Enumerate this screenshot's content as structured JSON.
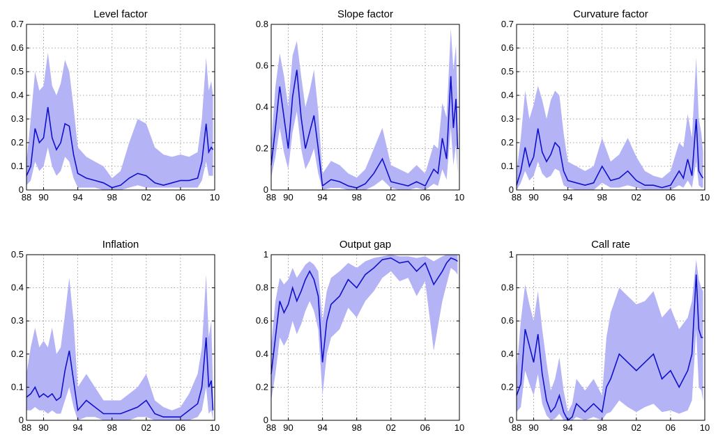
{
  "colors": {
    "band": "#b3b3f5",
    "line": "#1010cc",
    "grid": "#888888",
    "axis": "#000000"
  },
  "chart_data": [
    {
      "type": "area",
      "title": "Level factor",
      "x_ticks": [
        "88",
        "90",
        "94",
        "98",
        "02",
        "06",
        "10"
      ],
      "x_tick_values": [
        1988,
        1990,
        1994,
        1998,
        2002,
        2006,
        2010
      ],
      "xlim": [
        1988,
        2010
      ],
      "ylim": [
        0,
        0.7
      ],
      "y_ticks": [
        "0",
        "0.1",
        "0.2",
        "0.3",
        "0.4",
        "0.5",
        "0.6",
        "0.7"
      ],
      "y_tick_values": [
        0,
        0.1,
        0.2,
        0.3,
        0.4,
        0.5,
        0.6,
        0.7
      ],
      "grid": true,
      "x": [
        1988,
        1988.5,
        1989,
        1989.5,
        1990,
        1990.5,
        1991,
        1991.5,
        1992,
        1992.5,
        1993,
        1993.5,
        1994,
        1995,
        1996,
        1997,
        1998,
        1999,
        2000,
        2001,
        2002,
        2003,
        2004,
        2005,
        2006,
        2007,
        2008,
        2008.5,
        2009,
        2009.3,
        2009.6,
        2009.8
      ],
      "median": [
        0.06,
        0.1,
        0.26,
        0.2,
        0.22,
        0.35,
        0.22,
        0.17,
        0.2,
        0.28,
        0.27,
        0.15,
        0.07,
        0.05,
        0.04,
        0.03,
        0.01,
        0.02,
        0.05,
        0.07,
        0.06,
        0.03,
        0.02,
        0.03,
        0.04,
        0.04,
        0.05,
        0.12,
        0.28,
        0.16,
        0.18,
        0.17
      ],
      "lower": [
        0.02,
        0.04,
        0.12,
        0.08,
        0.1,
        0.18,
        0.1,
        0.06,
        0.08,
        0.14,
        0.12,
        0.05,
        0.01,
        0.01,
        0.01,
        0.0,
        0.0,
        0.0,
        0.01,
        0.02,
        0.01,
        0.01,
        0.01,
        0.01,
        0.01,
        0.01,
        0.01,
        0.04,
        0.12,
        0.06,
        0.06,
        0.06
      ],
      "upper": [
        0.12,
        0.3,
        0.5,
        0.42,
        0.44,
        0.58,
        0.44,
        0.4,
        0.45,
        0.55,
        0.5,
        0.35,
        0.18,
        0.14,
        0.12,
        0.1,
        0.05,
        0.08,
        0.2,
        0.3,
        0.28,
        0.18,
        0.15,
        0.14,
        0.15,
        0.14,
        0.16,
        0.3,
        0.56,
        0.42,
        0.46,
        0.4
      ]
    },
    {
      "type": "area",
      "title": "Slope factor",
      "x_ticks": [
        "88",
        "90",
        "94",
        "98",
        "02",
        "06",
        "10"
      ],
      "x_tick_values": [
        1988,
        1990,
        1994,
        1998,
        2002,
        2006,
        2010
      ],
      "xlim": [
        1988,
        2010
      ],
      "ylim": [
        0,
        0.8
      ],
      "y_ticks": [
        "0",
        "0.2",
        "0.4",
        "0.6",
        "0.8"
      ],
      "y_tick_values": [
        0,
        0.2,
        0.4,
        0.6,
        0.8
      ],
      "grid": true,
      "x": [
        1988,
        1988.5,
        1989,
        1989.5,
        1990,
        1990.5,
        1991,
        1991.5,
        1992,
        1992.5,
        1993,
        1993.5,
        1994,
        1995,
        1996,
        1997,
        1998,
        1999,
        2000,
        2001,
        2002,
        2003,
        2004,
        2005,
        2006,
        2007,
        2007.5,
        2008,
        2008.5,
        2009,
        2009.3,
        2009.6,
        2009.8
      ],
      "median": [
        0.12,
        0.3,
        0.5,
        0.35,
        0.2,
        0.45,
        0.58,
        0.35,
        0.2,
        0.28,
        0.36,
        0.2,
        0.02,
        0.05,
        0.04,
        0.02,
        0.01,
        0.03,
        0.08,
        0.15,
        0.04,
        0.03,
        0.02,
        0.04,
        0.02,
        0.1,
        0.08,
        0.25,
        0.15,
        0.55,
        0.3,
        0.44,
        0.2
      ],
      "lower": [
        0.06,
        0.16,
        0.3,
        0.18,
        0.1,
        0.28,
        0.38,
        0.2,
        0.1,
        0.14,
        0.2,
        0.08,
        0.0,
        0.01,
        0.01,
        0.0,
        0.0,
        0.0,
        0.02,
        0.05,
        0.01,
        0.0,
        0.0,
        0.01,
        0.0,
        0.03,
        0.02,
        0.1,
        0.05,
        0.3,
        0.12,
        0.22,
        0.08
      ],
      "upper": [
        0.22,
        0.5,
        0.66,
        0.55,
        0.4,
        0.65,
        0.72,
        0.55,
        0.4,
        0.48,
        0.58,
        0.38,
        0.08,
        0.14,
        0.12,
        0.08,
        0.06,
        0.1,
        0.2,
        0.3,
        0.12,
        0.1,
        0.08,
        0.12,
        0.08,
        0.22,
        0.2,
        0.42,
        0.35,
        0.78,
        0.58,
        0.7,
        0.4
      ]
    },
    {
      "type": "area",
      "title": "Curvature factor",
      "x_ticks": [
        "88",
        "90",
        "94",
        "98",
        "02",
        "06",
        "10"
      ],
      "x_tick_values": [
        1988,
        1990,
        1994,
        1998,
        2002,
        2006,
        2010
      ],
      "xlim": [
        1988,
        2010
      ],
      "ylim": [
        0,
        0.7
      ],
      "y_ticks": [
        "0",
        "0.1",
        "0.2",
        "0.3",
        "0.4",
        "0.5",
        "0.6",
        "0.7"
      ],
      "y_tick_values": [
        0,
        0.1,
        0.2,
        0.3,
        0.4,
        0.5,
        0.6,
        0.7
      ],
      "grid": true,
      "x": [
        1988,
        1988.5,
        1989,
        1989.5,
        1990,
        1990.5,
        1991,
        1991.5,
        1992,
        1992.5,
        1993,
        1993.5,
        1994,
        1995,
        1996,
        1997,
        1998,
        1999,
        2000,
        2001,
        2002,
        2003,
        2004,
        2005,
        2006,
        2007,
        2007.5,
        2008,
        2008.5,
        2009,
        2009.3,
        2009.6,
        2009.8
      ],
      "median": [
        0.02,
        0.08,
        0.18,
        0.1,
        0.14,
        0.26,
        0.16,
        0.12,
        0.15,
        0.2,
        0.18,
        0.08,
        0.04,
        0.03,
        0.02,
        0.03,
        0.1,
        0.04,
        0.05,
        0.08,
        0.04,
        0.02,
        0.02,
        0.01,
        0.02,
        0.08,
        0.05,
        0.13,
        0.06,
        0.3,
        0.08,
        0.06,
        0.05
      ],
      "lower": [
        0.0,
        0.03,
        0.08,
        0.04,
        0.06,
        0.12,
        0.07,
        0.05,
        0.06,
        0.09,
        0.08,
        0.02,
        0.01,
        0.0,
        0.0,
        0.0,
        0.03,
        0.01,
        0.01,
        0.02,
        0.01,
        0.0,
        0.0,
        0.0,
        0.0,
        0.02,
        0.01,
        0.04,
        0.01,
        0.12,
        0.02,
        0.01,
        0.01
      ],
      "upper": [
        0.08,
        0.22,
        0.42,
        0.3,
        0.36,
        0.44,
        0.38,
        0.3,
        0.38,
        0.42,
        0.4,
        0.24,
        0.12,
        0.1,
        0.08,
        0.1,
        0.22,
        0.12,
        0.15,
        0.22,
        0.14,
        0.08,
        0.06,
        0.05,
        0.08,
        0.2,
        0.18,
        0.32,
        0.22,
        0.56,
        0.3,
        0.24,
        0.16
      ]
    },
    {
      "type": "area",
      "title": "Inflation",
      "x_ticks": [
        "88",
        "90",
        "94",
        "98",
        "02",
        "06",
        "10"
      ],
      "x_tick_values": [
        1988,
        1990,
        1994,
        1998,
        2002,
        2006,
        2010
      ],
      "xlim": [
        1988,
        2010
      ],
      "ylim": [
        0,
        0.5
      ],
      "y_ticks": [
        "0",
        "0.1",
        "0.2",
        "0.3",
        "0.4",
        "0.5"
      ],
      "y_tick_values": [
        0,
        0.1,
        0.2,
        0.3,
        0.4,
        0.5
      ],
      "grid": true,
      "x": [
        1988,
        1988.5,
        1989,
        1989.5,
        1990,
        1990.5,
        1991,
        1991.5,
        1992,
        1992.5,
        1993,
        1993.5,
        1994,
        1995,
        1996,
        1997,
        1998,
        1999,
        2000,
        2001,
        2002,
        2003,
        2004,
        2005,
        2006,
        2007,
        2008,
        2008.5,
        2009,
        2009.3,
        2009.6,
        2009.8
      ],
      "median": [
        0.07,
        0.08,
        0.1,
        0.07,
        0.08,
        0.07,
        0.08,
        0.06,
        0.07,
        0.15,
        0.21,
        0.12,
        0.03,
        0.06,
        0.04,
        0.02,
        0.02,
        0.02,
        0.03,
        0.04,
        0.06,
        0.02,
        0.01,
        0.01,
        0.01,
        0.03,
        0.05,
        0.1,
        0.25,
        0.1,
        0.12,
        0.03
      ],
      "lower": [
        0.03,
        0.03,
        0.04,
        0.03,
        0.03,
        0.02,
        0.03,
        0.02,
        0.02,
        0.06,
        0.1,
        0.04,
        0.0,
        0.01,
        0.01,
        0.0,
        0.0,
        0.0,
        0.0,
        0.01,
        0.01,
        0.0,
        0.0,
        0.0,
        0.0,
        0.0,
        0.01,
        0.03,
        0.1,
        0.02,
        0.03,
        0.0
      ],
      "upper": [
        0.14,
        0.22,
        0.28,
        0.22,
        0.24,
        0.22,
        0.28,
        0.2,
        0.22,
        0.32,
        0.43,
        0.3,
        0.1,
        0.14,
        0.1,
        0.06,
        0.06,
        0.06,
        0.08,
        0.1,
        0.14,
        0.06,
        0.04,
        0.03,
        0.04,
        0.08,
        0.14,
        0.22,
        0.44,
        0.25,
        0.3,
        0.1
      ]
    },
    {
      "type": "area",
      "title": "Output gap",
      "x_ticks": [
        "88",
        "90",
        "94",
        "98",
        "02",
        "06",
        "10"
      ],
      "x_tick_values": [
        1988,
        1990,
        1994,
        1998,
        2002,
        2006,
        2010
      ],
      "xlim": [
        1988,
        2010
      ],
      "ylim": [
        0,
        1
      ],
      "y_ticks": [
        "0",
        "0.2",
        "0.4",
        "0.6",
        "0.8",
        "1"
      ],
      "y_tick_values": [
        0,
        0.2,
        0.4,
        0.6,
        0.8,
        1
      ],
      "grid": true,
      "x": [
        1988,
        1988.5,
        1989,
        1989.5,
        1990,
        1990.5,
        1991,
        1991.5,
        1992,
        1992.5,
        1993,
        1993.5,
        1994,
        1994.5,
        1995,
        1996,
        1997,
        1998,
        1999,
        2000,
        2001,
        2002,
        2003,
        2004,
        2005,
        2006,
        2007,
        2008,
        2008.5,
        2009,
        2009.5,
        2009.8
      ],
      "median": [
        0.28,
        0.5,
        0.72,
        0.65,
        0.7,
        0.8,
        0.72,
        0.78,
        0.85,
        0.9,
        0.85,
        0.75,
        0.35,
        0.6,
        0.7,
        0.75,
        0.85,
        0.8,
        0.88,
        0.92,
        0.97,
        0.98,
        0.95,
        0.96,
        0.9,
        0.95,
        0.82,
        0.9,
        0.95,
        0.98,
        0.97,
        0.96
      ],
      "lower": [
        0.12,
        0.28,
        0.5,
        0.45,
        0.5,
        0.6,
        0.52,
        0.58,
        0.66,
        0.72,
        0.66,
        0.55,
        0.15,
        0.4,
        0.5,
        0.55,
        0.68,
        0.62,
        0.72,
        0.78,
        0.86,
        0.9,
        0.84,
        0.86,
        0.75,
        0.84,
        0.42,
        0.72,
        0.82,
        0.92,
        0.9,
        0.88
      ],
      "upper": [
        0.45,
        0.72,
        0.86,
        0.82,
        0.85,
        0.92,
        0.86,
        0.9,
        0.94,
        0.96,
        0.94,
        0.9,
        0.6,
        0.78,
        0.86,
        0.9,
        0.95,
        0.92,
        0.96,
        0.98,
        0.99,
        1.0,
        0.99,
        0.99,
        0.98,
        0.99,
        0.96,
        0.99,
        1.0,
        1.0,
        1.0,
        1.0
      ]
    },
    {
      "type": "area",
      "title": "Call rate",
      "x_ticks": [
        "88",
        "90",
        "94",
        "98",
        "02",
        "06",
        "10"
      ],
      "x_tick_values": [
        1988,
        1990,
        1994,
        1998,
        2002,
        2006,
        2010
      ],
      "xlim": [
        1988,
        2010
      ],
      "ylim": [
        0,
        1
      ],
      "y_ticks": [
        "0",
        "0.2",
        "0.4",
        "0.6",
        "0.8",
        "1"
      ],
      "y_tick_values": [
        0,
        0.2,
        0.4,
        0.6,
        0.8,
        1
      ],
      "grid": true,
      "x": [
        1988,
        1988.5,
        1989,
        1989.5,
        1990,
        1990.5,
        1991,
        1991.5,
        1992,
        1992.5,
        1993,
        1993.5,
        1994,
        1994.5,
        1995,
        1996,
        1997,
        1998,
        1998.5,
        1999,
        2000,
        2001,
        2002,
        2003,
        2004,
        2005,
        2006,
        2007,
        2008,
        2008.5,
        2009,
        2009.3,
        2009.6,
        2009.8
      ],
      "median": [
        0.15,
        0.22,
        0.55,
        0.45,
        0.35,
        0.52,
        0.28,
        0.12,
        0.05,
        0.08,
        0.15,
        0.05,
        0.0,
        0.02,
        0.1,
        0.05,
        0.1,
        0.05,
        0.2,
        0.25,
        0.4,
        0.35,
        0.3,
        0.35,
        0.4,
        0.25,
        0.3,
        0.2,
        0.3,
        0.4,
        0.88,
        0.55,
        0.5,
        0.5
      ],
      "lower": [
        0.05,
        0.08,
        0.3,
        0.22,
        0.15,
        0.28,
        0.1,
        0.03,
        0.0,
        0.01,
        0.04,
        0.0,
        0.0,
        0.0,
        0.02,
        0.0,
        0.02,
        0.0,
        0.04,
        0.05,
        0.12,
        0.08,
        0.05,
        0.08,
        0.1,
        0.05,
        0.06,
        0.04,
        0.06,
        0.12,
        0.55,
        0.2,
        0.18,
        0.12
      ],
      "upper": [
        0.3,
        0.6,
        0.82,
        0.7,
        0.6,
        0.78,
        0.55,
        0.35,
        0.18,
        0.25,
        0.38,
        0.18,
        0.05,
        0.1,
        0.25,
        0.18,
        0.25,
        0.15,
        0.5,
        0.65,
        0.8,
        0.75,
        0.7,
        0.72,
        0.78,
        0.62,
        0.68,
        0.55,
        0.62,
        0.72,
        0.97,
        0.85,
        0.8,
        0.78
      ]
    }
  ]
}
